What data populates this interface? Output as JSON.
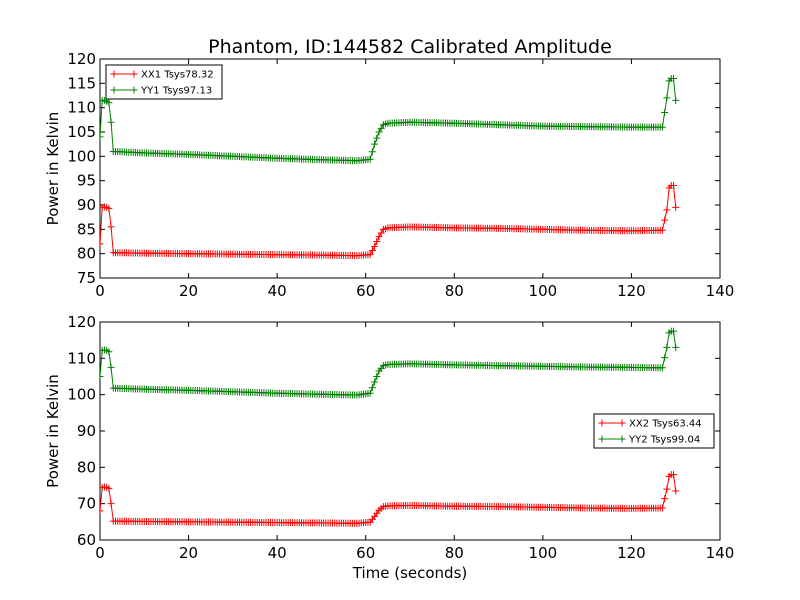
{
  "chart_data": [
    {
      "type": "line",
      "title": "Phantom, ID:144582 Calibrated Amplitude",
      "xlabel": "",
      "ylabel": "Power in Kelvin",
      "xlim": [
        0,
        140
      ],
      "ylim": [
        75,
        120
      ],
      "xticks": [
        "0",
        "20",
        "40",
        "60",
        "80",
        "100",
        "120",
        "140"
      ],
      "yticks": [
        "75",
        "80",
        "85",
        "90",
        "95",
        "100",
        "105",
        "110",
        "115",
        "120"
      ],
      "legend_position": "upper-left",
      "marker": "+",
      "series": [
        {
          "name": "XX1 Tsys78.32",
          "color": "#ff0000",
          "points": [
            [
              0,
              82
            ],
            [
              0.5,
              89.5
            ],
            [
              1,
              89.6
            ],
            [
              1.5,
              89.5
            ],
            [
              2,
              89.3
            ],
            [
              2.5,
              85.5
            ],
            [
              3,
              80.2
            ],
            [
              10,
              80.1
            ],
            [
              20,
              80.0
            ],
            [
              30,
              79.9
            ],
            [
              40,
              79.8
            ],
            [
              50,
              79.7
            ],
            [
              58,
              79.6
            ],
            [
              61,
              79.8
            ],
            [
              62,
              81.5
            ],
            [
              63,
              83.5
            ],
            [
              64,
              85.0
            ],
            [
              65,
              85.3
            ],
            [
              70,
              85.5
            ],
            [
              80,
              85.3
            ],
            [
              90,
              85.2
            ],
            [
              100,
              85.0
            ],
            [
              110,
              84.8
            ],
            [
              120,
              84.7
            ],
            [
              127,
              84.8
            ],
            [
              128,
              89
            ],
            [
              128.5,
              93.5
            ],
            [
              129,
              94
            ],
            [
              129.5,
              94
            ],
            [
              130,
              89.5
            ]
          ]
        },
        {
          "name": "YY1 Tsys97.13",
          "color": "#008000",
          "points": [
            [
              0,
              104
            ],
            [
              0.5,
              111.5
            ],
            [
              1,
              111.5
            ],
            [
              1.5,
              111.3
            ],
            [
              2,
              111
            ],
            [
              2.5,
              107
            ],
            [
              3,
              101
            ],
            [
              10,
              100.7
            ],
            [
              20,
              100.4
            ],
            [
              30,
              100.0
            ],
            [
              40,
              99.6
            ],
            [
              50,
              99.3
            ],
            [
              58,
              99.1
            ],
            [
              61,
              99.4
            ],
            [
              62,
              102.5
            ],
            [
              63,
              105
            ],
            [
              64,
              106.5
            ],
            [
              65,
              106.8
            ],
            [
              70,
              107.0
            ],
            [
              80,
              106.8
            ],
            [
              90,
              106.5
            ],
            [
              100,
              106.2
            ],
            [
              110,
              106.1
            ],
            [
              120,
              106.0
            ],
            [
              127,
              106
            ],
            [
              128,
              112
            ],
            [
              128.5,
              115.5
            ],
            [
              129,
              116
            ],
            [
              129.5,
              116
            ],
            [
              130,
              111.5
            ]
          ]
        }
      ]
    },
    {
      "type": "line",
      "title": "",
      "xlabel": "Time (seconds)",
      "ylabel": "Power in Kelvin",
      "xlim": [
        0,
        140
      ],
      "ylim": [
        60,
        120
      ],
      "xticks": [
        "0",
        "20",
        "40",
        "60",
        "80",
        "100",
        "120",
        "140"
      ],
      "yticks": [
        "60",
        "70",
        "80",
        "90",
        "100",
        "110",
        "120"
      ],
      "legend_position": "center-right",
      "marker": "+",
      "series": [
        {
          "name": "XX2 Tsys63.44",
          "color": "#ff0000",
          "points": [
            [
              0,
              68
            ],
            [
              0.5,
              74.5
            ],
            [
              1,
              74.6
            ],
            [
              1.5,
              74.5
            ],
            [
              2,
              74.2
            ],
            [
              2.5,
              70
            ],
            [
              3,
              65.2
            ],
            [
              10,
              65.1
            ],
            [
              20,
              65.0
            ],
            [
              30,
              64.9
            ],
            [
              40,
              64.8
            ],
            [
              50,
              64.7
            ],
            [
              58,
              64.6
            ],
            [
              61,
              64.9
            ],
            [
              62,
              66.5
            ],
            [
              63,
              68.2
            ],
            [
              64,
              69.2
            ],
            [
              65,
              69.4
            ],
            [
              70,
              69.5
            ],
            [
              80,
              69.3
            ],
            [
              90,
              69.2
            ],
            [
              100,
              69.0
            ],
            [
              110,
              68.8
            ],
            [
              120,
              68.7
            ],
            [
              127,
              68.8
            ],
            [
              128,
              74
            ],
            [
              128.5,
              77.5
            ],
            [
              129,
              78
            ],
            [
              129.5,
              78
            ],
            [
              130,
              73.5
            ]
          ]
        },
        {
          "name": "YY2 Tsys99.04",
          "color": "#008000",
          "points": [
            [
              0,
              105
            ],
            [
              0.5,
              112.2
            ],
            [
              1,
              112.3
            ],
            [
              1.5,
              112.2
            ],
            [
              2,
              111.8
            ],
            [
              2.5,
              107.5
            ],
            [
              3,
              101.8
            ],
            [
              10,
              101.5
            ],
            [
              20,
              101.2
            ],
            [
              30,
              100.8
            ],
            [
              40,
              100.4
            ],
            [
              50,
              100.1
            ],
            [
              58,
              99.9
            ],
            [
              61,
              100.4
            ],
            [
              62,
              103.5
            ],
            [
              63,
              106.5
            ],
            [
              64,
              108.0
            ],
            [
              65,
              108.3
            ],
            [
              70,
              108.5
            ],
            [
              80,
              108.2
            ],
            [
              90,
              108.0
            ],
            [
              100,
              107.8
            ],
            [
              110,
              107.6
            ],
            [
              120,
              107.5
            ],
            [
              127,
              107.4
            ],
            [
              128,
              113
            ],
            [
              128.5,
              117
            ],
            [
              129,
              117.5
            ],
            [
              129.5,
              117.5
            ],
            [
              130,
              113
            ]
          ]
        }
      ]
    }
  ]
}
